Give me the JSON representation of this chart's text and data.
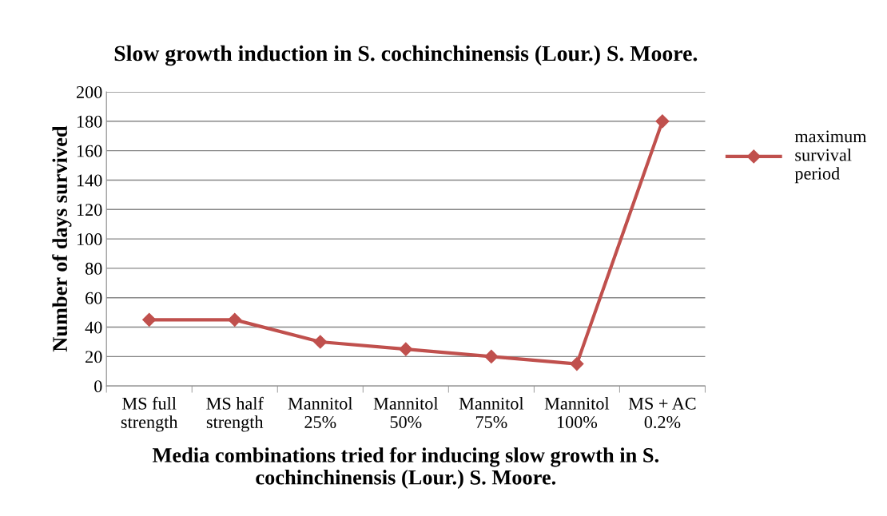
{
  "chart_data": {
    "type": "line",
    "title": "Slow growth induction in S. cochinchinensis (Lour.) S. Moore.",
    "xlabel": "Media combinations tried for inducing slow growth in S.\ncochinchinensis (Lour.) S. Moore.",
    "ylabel": "Number of days survived",
    "categories": [
      "MS full\nstrength",
      "MS half\nstrength",
      "Mannitol\n25%",
      "Mannitol\n50%",
      "Mannitol\n75%",
      "Mannitol\n100%",
      "MS + AC\n0.2%"
    ],
    "series": [
      {
        "name": "maximum\nsurvival\nperiod",
        "color": "#c0504d",
        "values": [
          45,
          45,
          30,
          25,
          20,
          15,
          180
        ]
      }
    ],
    "ylim": [
      0,
      200
    ],
    "yticks": [
      0,
      20,
      40,
      60,
      80,
      100,
      120,
      140,
      160,
      180,
      200
    ],
    "grid": "y",
    "legend": "right",
    "marker": "diamond",
    "line_style": "solid"
  }
}
